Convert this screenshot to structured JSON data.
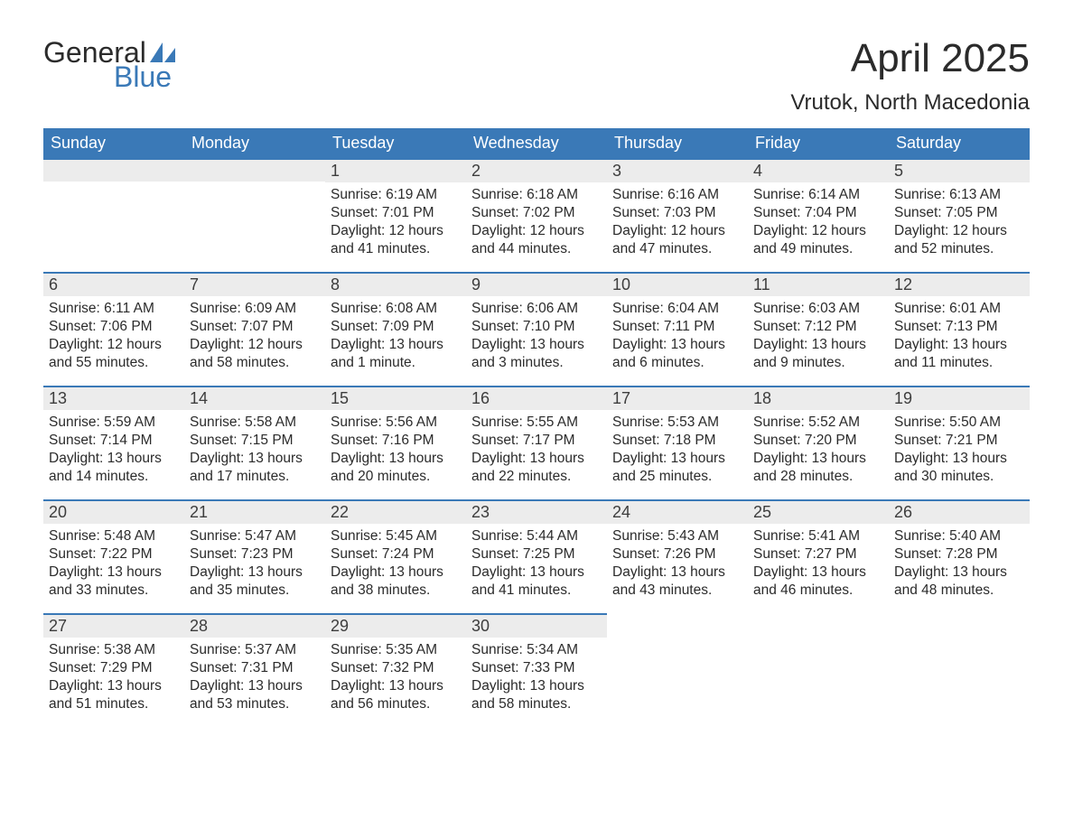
{
  "logo": {
    "text1": "General",
    "text2": "Blue"
  },
  "title": "April 2025",
  "location": "Vrutok, North Macedonia",
  "style": {
    "header_bg": "#3a79b7",
    "header_text": "#ffffff",
    "daynum_bg": "#ececec",
    "daynum_border": "#3a79b7",
    "body_text": "#2b2b2b",
    "logo_blue": "#3a79b7",
    "page_bg": "#ffffff",
    "title_fontsize": 44,
    "location_fontsize": 24,
    "header_fontsize": 18,
    "body_fontsize": 15.5
  },
  "weekdays": [
    "Sunday",
    "Monday",
    "Tuesday",
    "Wednesday",
    "Thursday",
    "Friday",
    "Saturday"
  ],
  "weeks": [
    [
      null,
      null,
      {
        "n": "1",
        "sr": "Sunrise: 6:19 AM",
        "ss": "Sunset: 7:01 PM",
        "dl": "Daylight: 12 hours and 41 minutes."
      },
      {
        "n": "2",
        "sr": "Sunrise: 6:18 AM",
        "ss": "Sunset: 7:02 PM",
        "dl": "Daylight: 12 hours and 44 minutes."
      },
      {
        "n": "3",
        "sr": "Sunrise: 6:16 AM",
        "ss": "Sunset: 7:03 PM",
        "dl": "Daylight: 12 hours and 47 minutes."
      },
      {
        "n": "4",
        "sr": "Sunrise: 6:14 AM",
        "ss": "Sunset: 7:04 PM",
        "dl": "Daylight: 12 hours and 49 minutes."
      },
      {
        "n": "5",
        "sr": "Sunrise: 6:13 AM",
        "ss": "Sunset: 7:05 PM",
        "dl": "Daylight: 12 hours and 52 minutes."
      }
    ],
    [
      {
        "n": "6",
        "sr": "Sunrise: 6:11 AM",
        "ss": "Sunset: 7:06 PM",
        "dl": "Daylight: 12 hours and 55 minutes."
      },
      {
        "n": "7",
        "sr": "Sunrise: 6:09 AM",
        "ss": "Sunset: 7:07 PM",
        "dl": "Daylight: 12 hours and 58 minutes."
      },
      {
        "n": "8",
        "sr": "Sunrise: 6:08 AM",
        "ss": "Sunset: 7:09 PM",
        "dl": "Daylight: 13 hours and 1 minute."
      },
      {
        "n": "9",
        "sr": "Sunrise: 6:06 AM",
        "ss": "Sunset: 7:10 PM",
        "dl": "Daylight: 13 hours and 3 minutes."
      },
      {
        "n": "10",
        "sr": "Sunrise: 6:04 AM",
        "ss": "Sunset: 7:11 PM",
        "dl": "Daylight: 13 hours and 6 minutes."
      },
      {
        "n": "11",
        "sr": "Sunrise: 6:03 AM",
        "ss": "Sunset: 7:12 PM",
        "dl": "Daylight: 13 hours and 9 minutes."
      },
      {
        "n": "12",
        "sr": "Sunrise: 6:01 AM",
        "ss": "Sunset: 7:13 PM",
        "dl": "Daylight: 13 hours and 11 minutes."
      }
    ],
    [
      {
        "n": "13",
        "sr": "Sunrise: 5:59 AM",
        "ss": "Sunset: 7:14 PM",
        "dl": "Daylight: 13 hours and 14 minutes."
      },
      {
        "n": "14",
        "sr": "Sunrise: 5:58 AM",
        "ss": "Sunset: 7:15 PM",
        "dl": "Daylight: 13 hours and 17 minutes."
      },
      {
        "n": "15",
        "sr": "Sunrise: 5:56 AM",
        "ss": "Sunset: 7:16 PM",
        "dl": "Daylight: 13 hours and 20 minutes."
      },
      {
        "n": "16",
        "sr": "Sunrise: 5:55 AM",
        "ss": "Sunset: 7:17 PM",
        "dl": "Daylight: 13 hours and 22 minutes."
      },
      {
        "n": "17",
        "sr": "Sunrise: 5:53 AM",
        "ss": "Sunset: 7:18 PM",
        "dl": "Daylight: 13 hours and 25 minutes."
      },
      {
        "n": "18",
        "sr": "Sunrise: 5:52 AM",
        "ss": "Sunset: 7:20 PM",
        "dl": "Daylight: 13 hours and 28 minutes."
      },
      {
        "n": "19",
        "sr": "Sunrise: 5:50 AM",
        "ss": "Sunset: 7:21 PM",
        "dl": "Daylight: 13 hours and 30 minutes."
      }
    ],
    [
      {
        "n": "20",
        "sr": "Sunrise: 5:48 AM",
        "ss": "Sunset: 7:22 PM",
        "dl": "Daylight: 13 hours and 33 minutes."
      },
      {
        "n": "21",
        "sr": "Sunrise: 5:47 AM",
        "ss": "Sunset: 7:23 PM",
        "dl": "Daylight: 13 hours and 35 minutes."
      },
      {
        "n": "22",
        "sr": "Sunrise: 5:45 AM",
        "ss": "Sunset: 7:24 PM",
        "dl": "Daylight: 13 hours and 38 minutes."
      },
      {
        "n": "23",
        "sr": "Sunrise: 5:44 AM",
        "ss": "Sunset: 7:25 PM",
        "dl": "Daylight: 13 hours and 41 minutes."
      },
      {
        "n": "24",
        "sr": "Sunrise: 5:43 AM",
        "ss": "Sunset: 7:26 PM",
        "dl": "Daylight: 13 hours and 43 minutes."
      },
      {
        "n": "25",
        "sr": "Sunrise: 5:41 AM",
        "ss": "Sunset: 7:27 PM",
        "dl": "Daylight: 13 hours and 46 minutes."
      },
      {
        "n": "26",
        "sr": "Sunrise: 5:40 AM",
        "ss": "Sunset: 7:28 PM",
        "dl": "Daylight: 13 hours and 48 minutes."
      }
    ],
    [
      {
        "n": "27",
        "sr": "Sunrise: 5:38 AM",
        "ss": "Sunset: 7:29 PM",
        "dl": "Daylight: 13 hours and 51 minutes."
      },
      {
        "n": "28",
        "sr": "Sunrise: 5:37 AM",
        "ss": "Sunset: 7:31 PM",
        "dl": "Daylight: 13 hours and 53 minutes."
      },
      {
        "n": "29",
        "sr": "Sunrise: 5:35 AM",
        "ss": "Sunset: 7:32 PM",
        "dl": "Daylight: 13 hours and 56 minutes."
      },
      {
        "n": "30",
        "sr": "Sunrise: 5:34 AM",
        "ss": "Sunset: 7:33 PM",
        "dl": "Daylight: 13 hours and 58 minutes."
      },
      null,
      null,
      null
    ]
  ]
}
